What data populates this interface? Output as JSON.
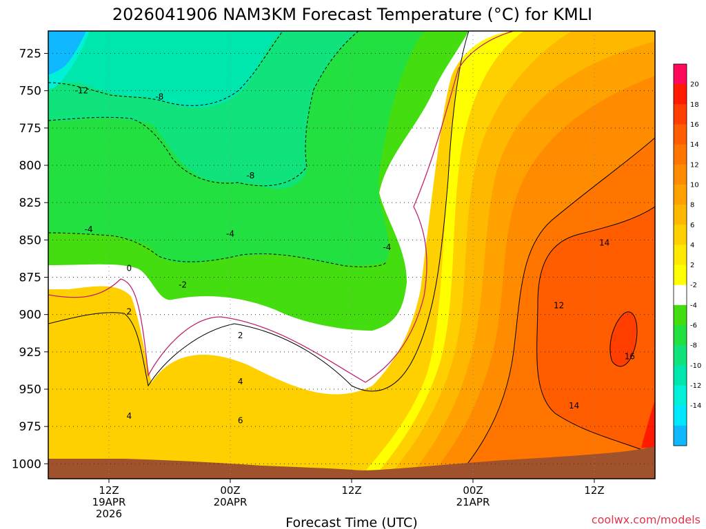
{
  "chart_data": {
    "type": "heatmap",
    "title": "2026041906 NAM3KM Forecast Temperature (°C) for KMLI",
    "xlabel": "Forecast Time (UTC)",
    "ylabel": "",
    "credit": "coolwx.com/models",
    "y_ticks": [
      "725",
      "750",
      "775",
      "800",
      "825",
      "850",
      "875",
      "900",
      "925",
      "950",
      "975",
      "1000"
    ],
    "y_values": [
      725,
      750,
      775,
      800,
      825,
      850,
      875,
      900,
      925,
      950,
      975,
      1000
    ],
    "ylim": [
      710,
      1010
    ],
    "x_ticks": [
      {
        "hour": 6,
        "lines": [
          "12Z",
          "19APR",
          "2026"
        ]
      },
      {
        "hour": 18,
        "lines": [
          "00Z",
          "20APR"
        ]
      },
      {
        "hour": 30,
        "lines": [
          "12Z"
        ]
      },
      {
        "hour": 42,
        "lines": [
          "00Z",
          "21APR"
        ]
      },
      {
        "hour": 54,
        "lines": [
          "12Z"
        ]
      }
    ],
    "xlim": [
      0,
      60
    ],
    "colorbar": {
      "labels": [
        "20",
        "18",
        "16",
        "14",
        "12",
        "10",
        "8",
        "6",
        "4",
        "2",
        "-2",
        "-4",
        "-6",
        "-8",
        "-10",
        "-12",
        "-14"
      ],
      "colors": [
        "#ff0a5a",
        "#ff1a00",
        "#ff3e00",
        "#ff5d00",
        "#ff7500",
        "#ff8c00",
        "#ffa200",
        "#ffb800",
        "#ffd000",
        "#ffe900",
        "#ffff00",
        "#ffffff",
        "#44dd10",
        "#22e040",
        "#10e27c",
        "#00e7ad",
        "#00f0d8",
        "#00e8ff",
        "#10b8ff"
      ]
    },
    "contour_labels": [
      {
        "text": "-12",
        "t": 3.3,
        "p": 750
      },
      {
        "text": "-8",
        "t": 11,
        "p": 754
      },
      {
        "text": "-8",
        "t": 20,
        "p": 807
      },
      {
        "text": "-4",
        "t": 4,
        "p": 843
      },
      {
        "text": "-4",
        "t": 18,
        "p": 846
      },
      {
        "text": "-4",
        "t": 33.5,
        "p": 855
      },
      {
        "text": "-2",
        "t": 13.3,
        "p": 880
      },
      {
        "text": "0",
        "t": 8,
        "p": 869
      },
      {
        "text": "2",
        "t": 8,
        "p": 898
      },
      {
        "text": "2",
        "t": 19,
        "p": 914
      },
      {
        "text": "4",
        "t": 19,
        "p": 945
      },
      {
        "text": "4",
        "t": 8,
        "p": 968
      },
      {
        "text": "6",
        "t": 19,
        "p": 971
      },
      {
        "text": "12",
        "t": 50.5,
        "p": 894
      },
      {
        "text": "14",
        "t": 55,
        "p": 852
      },
      {
        "text": "14",
        "t": 52,
        "p": 961
      },
      {
        "text": "16",
        "t": 57.5,
        "p": 928
      }
    ]
  }
}
